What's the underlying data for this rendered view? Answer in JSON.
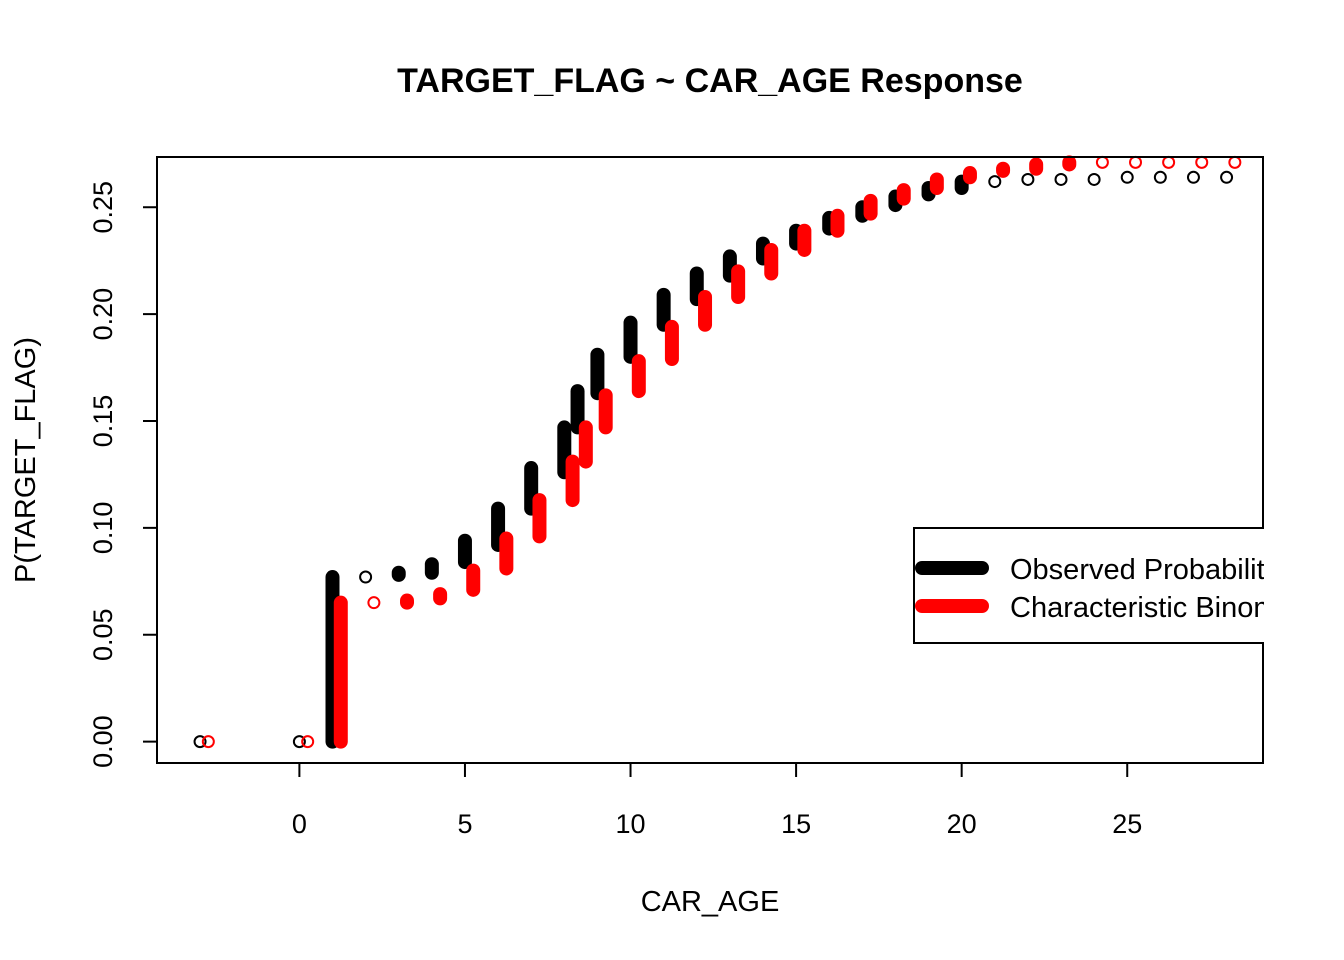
{
  "chart_data": {
    "type": "scatter",
    "title": "TARGET_FLAG ~ CAR_AGE Response",
    "xlabel": "CAR_AGE",
    "ylabel": "P(TARGET_FLAG)",
    "xlim": [
      -4.3,
      29.1
    ],
    "ylim": [
      -0.01,
      0.2735
    ],
    "x_ticks": [
      0,
      5,
      10,
      15,
      20,
      25
    ],
    "x_tick_labels": [
      "0",
      "5",
      "10",
      "15",
      "20",
      "25"
    ],
    "y_ticks": [
      0.0,
      0.05,
      0.1,
      0.15,
      0.2,
      0.25
    ],
    "y_tick_labels": [
      "0.00",
      "0.05",
      "0.10",
      "0.15",
      "0.20",
      "0.25"
    ],
    "legend": {
      "position": "right",
      "entries": [
        {
          "label": "Observed Probability",
          "color": "#000000"
        },
        {
          "label": "Characteristic Binomial",
          "color": "#ff0000"
        }
      ]
    },
    "series": [
      {
        "name": "Observed Probability",
        "color": "#000000",
        "x_offset": 0,
        "points": [
          {
            "x": -3,
            "ymin": 0.0,
            "ymax": 0.0
          },
          {
            "x": 0,
            "ymin": 0.0,
            "ymax": 0.0
          },
          {
            "x": 1,
            "ymin": 0.0,
            "ymax": 0.077
          },
          {
            "x": 2,
            "ymin": 0.077,
            "ymax": 0.077
          },
          {
            "x": 3,
            "ymin": 0.078,
            "ymax": 0.079
          },
          {
            "x": 4,
            "ymin": 0.079,
            "ymax": 0.083
          },
          {
            "x": 5,
            "ymin": 0.084,
            "ymax": 0.094
          },
          {
            "x": 6,
            "ymin": 0.092,
            "ymax": 0.109
          },
          {
            "x": 7,
            "ymin": 0.109,
            "ymax": 0.128
          },
          {
            "x": 8,
            "ymin": 0.126,
            "ymax": 0.147
          },
          {
            "x": 8.4,
            "ymin": 0.147,
            "ymax": 0.164
          },
          {
            "x": 9,
            "ymin": 0.163,
            "ymax": 0.181
          },
          {
            "x": 10,
            "ymin": 0.18,
            "ymax": 0.196
          },
          {
            "x": 11,
            "ymin": 0.195,
            "ymax": 0.209
          },
          {
            "x": 12,
            "ymin": 0.207,
            "ymax": 0.219
          },
          {
            "x": 13,
            "ymin": 0.218,
            "ymax": 0.227
          },
          {
            "x": 14,
            "ymin": 0.226,
            "ymax": 0.233
          },
          {
            "x": 15,
            "ymin": 0.233,
            "ymax": 0.239
          },
          {
            "x": 16,
            "ymin": 0.24,
            "ymax": 0.245
          },
          {
            "x": 17,
            "ymin": 0.246,
            "ymax": 0.25
          },
          {
            "x": 18,
            "ymin": 0.251,
            "ymax": 0.255
          },
          {
            "x": 19,
            "ymin": 0.256,
            "ymax": 0.259
          },
          {
            "x": 20,
            "ymin": 0.259,
            "ymax": 0.262
          },
          {
            "x": 21,
            "ymin": 0.262,
            "ymax": 0.262
          },
          {
            "x": 22,
            "ymin": 0.263,
            "ymax": 0.263
          },
          {
            "x": 23,
            "ymin": 0.263,
            "ymax": 0.263
          },
          {
            "x": 24,
            "ymin": 0.263,
            "ymax": 0.263
          },
          {
            "x": 25,
            "ymin": 0.264,
            "ymax": 0.264
          },
          {
            "x": 26,
            "ymin": 0.264,
            "ymax": 0.264
          },
          {
            "x": 27,
            "ymin": 0.264,
            "ymax": 0.264
          },
          {
            "x": 28,
            "ymin": 0.264,
            "ymax": 0.264
          }
        ]
      },
      {
        "name": "Characteristic Binomial",
        "color": "#ff0000",
        "x_offset": 0.25,
        "points": [
          {
            "x": -3,
            "ymin": 0.0,
            "ymax": 0.0
          },
          {
            "x": 0,
            "ymin": 0.0,
            "ymax": 0.0
          },
          {
            "x": 1,
            "ymin": 0.0,
            "ymax": 0.065
          },
          {
            "x": 2,
            "ymin": 0.065,
            "ymax": 0.065
          },
          {
            "x": 3,
            "ymin": 0.065,
            "ymax": 0.066
          },
          {
            "x": 4,
            "ymin": 0.067,
            "ymax": 0.069
          },
          {
            "x": 5,
            "ymin": 0.071,
            "ymax": 0.08
          },
          {
            "x": 6,
            "ymin": 0.081,
            "ymax": 0.095
          },
          {
            "x": 7,
            "ymin": 0.096,
            "ymax": 0.113
          },
          {
            "x": 8,
            "ymin": 0.113,
            "ymax": 0.131
          },
          {
            "x": 8.4,
            "ymin": 0.131,
            "ymax": 0.147
          },
          {
            "x": 9,
            "ymin": 0.147,
            "ymax": 0.162
          },
          {
            "x": 10,
            "ymin": 0.164,
            "ymax": 0.178
          },
          {
            "x": 11,
            "ymin": 0.179,
            "ymax": 0.194
          },
          {
            "x": 12,
            "ymin": 0.195,
            "ymax": 0.208
          },
          {
            "x": 13,
            "ymin": 0.208,
            "ymax": 0.22
          },
          {
            "x": 14,
            "ymin": 0.219,
            "ymax": 0.23
          },
          {
            "x": 15,
            "ymin": 0.23,
            "ymax": 0.239
          },
          {
            "x": 16,
            "ymin": 0.239,
            "ymax": 0.246
          },
          {
            "x": 17,
            "ymin": 0.247,
            "ymax": 0.253
          },
          {
            "x": 18,
            "ymin": 0.254,
            "ymax": 0.258
          },
          {
            "x": 19,
            "ymin": 0.259,
            "ymax": 0.263
          },
          {
            "x": 20,
            "ymin": 0.264,
            "ymax": 0.266
          },
          {
            "x": 21,
            "ymin": 0.267,
            "ymax": 0.268
          },
          {
            "x": 22,
            "ymin": 0.268,
            "ymax": 0.27
          },
          {
            "x": 23,
            "ymin": 0.27,
            "ymax": 0.271
          },
          {
            "x": 24,
            "ymin": 0.271,
            "ymax": 0.271
          },
          {
            "x": 25,
            "ymin": 0.271,
            "ymax": 0.271
          },
          {
            "x": 26,
            "ymin": 0.271,
            "ymax": 0.271
          },
          {
            "x": 27,
            "ymin": 0.271,
            "ymax": 0.271
          },
          {
            "x": 28,
            "ymin": 0.271,
            "ymax": 0.271
          }
        ]
      }
    ]
  }
}
